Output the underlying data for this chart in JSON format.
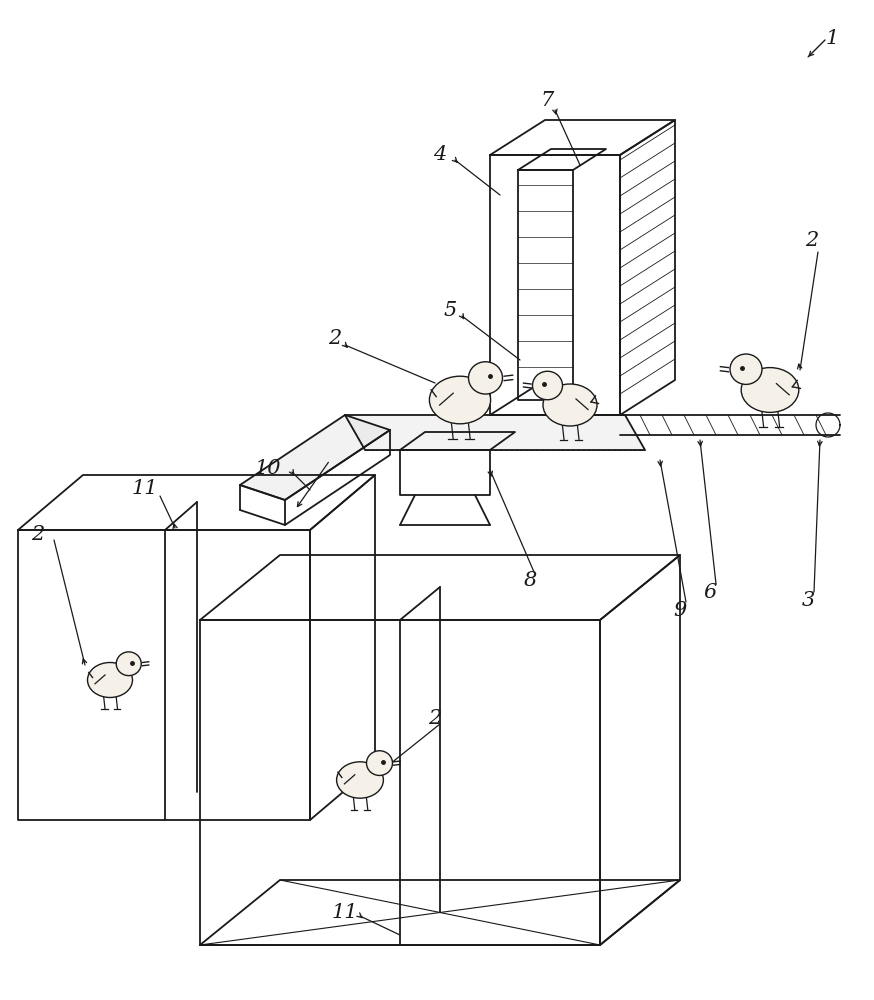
{
  "bg_color": "#ffffff",
  "lc": "#1a1a1a",
  "lw": 1.3,
  "fig_w": 8.74,
  "fig_h": 10.0
}
